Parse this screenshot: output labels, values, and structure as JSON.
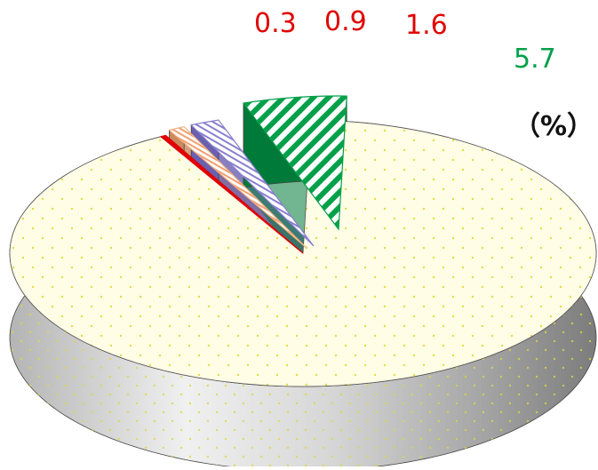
{
  "chart_data": {
    "type": "pie",
    "style": "3d-exploded",
    "title": "",
    "unit_label": "（%）",
    "slices": [
      {
        "label": "",
        "value": 91.5,
        "color": "#fffde6",
        "pattern": "yellow-dots",
        "value_label": ""
      },
      {
        "label": "",
        "value": 0.3,
        "color": "#e00000",
        "pattern": "solid",
        "value_label": "0.3"
      },
      {
        "label": "",
        "value": 0.9,
        "color": "#f4b183",
        "pattern": "peach-hatch",
        "value_label": "0.9"
      },
      {
        "label": "",
        "value": 1.6,
        "color": "#8a7fd0",
        "pattern": "purple-hatch",
        "value_label": "1.6"
      },
      {
        "label": "",
        "value": 5.7,
        "color": "#00a04a",
        "pattern": "green-stripes",
        "value_label": "5.7"
      }
    ],
    "label_colors": {
      "0.3": "#e00000",
      "0.9": "#e00000",
      "1.6": "#e00000",
      "5.7": "#00a04a"
    }
  }
}
